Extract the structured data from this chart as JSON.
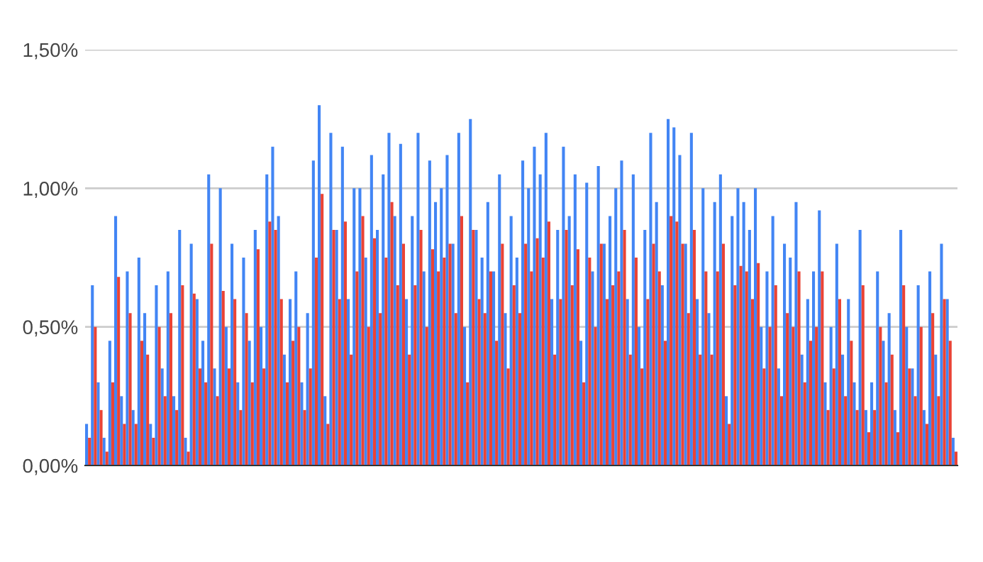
{
  "chart_data": {
    "type": "bar",
    "categories": [
      null,
      null,
      null,
      null,
      null,
      null,
      null,
      null,
      null,
      null,
      null,
      null,
      null,
      null,
      null,
      null,
      null,
      null,
      null,
      null,
      null,
      null,
      null,
      null,
      null,
      null,
      null,
      null,
      null,
      null,
      null,
      null,
      null,
      null,
      null,
      null,
      null,
      null,
      null,
      null,
      null,
      null,
      null,
      null,
      null,
      null,
      null,
      null,
      null,
      null,
      null,
      null,
      null,
      null,
      null,
      null,
      null,
      null,
      null,
      null,
      null,
      null,
      null,
      null,
      null,
      null,
      null,
      null,
      null,
      null,
      null,
      null,
      null,
      null,
      null,
      null,
      null,
      null,
      null,
      null,
      null,
      null,
      null,
      null,
      null,
      null,
      null,
      null,
      null,
      null,
      null,
      null,
      null,
      null,
      null,
      null,
      null,
      null,
      null,
      null,
      null,
      null,
      null,
      null,
      null,
      null,
      null,
      null,
      null,
      null,
      null,
      null,
      null,
      null,
      null,
      null,
      null,
      null,
      null,
      null,
      null,
      null,
      null,
      null,
      null,
      null,
      null,
      null,
      null,
      null,
      null,
      null,
      null,
      null,
      null,
      null,
      null,
      null,
      null,
      null,
      null,
      null,
      null,
      null,
      null,
      null,
      null,
      null,
      null,
      null
    ],
    "series": [
      {
        "color": "#4285f4",
        "values": [
          0.15,
          0.65,
          0.3,
          0.1,
          0.45,
          0.9,
          0.25,
          0.7,
          0.2,
          0.75,
          0.55,
          0.15,
          0.65,
          0.35,
          0.7,
          0.25,
          0.85,
          0.1,
          0.8,
          0.6,
          0.45,
          1.05,
          0.35,
          1.0,
          0.5,
          0.8,
          0.3,
          0.75,
          0.45,
          0.85,
          0.5,
          1.05,
          1.15,
          0.9,
          0.4,
          0.6,
          0.7,
          0.3,
          0.55,
          1.1,
          1.3,
          0.25,
          1.2,
          0.85,
          1.15,
          0.6,
          1.0,
          1.0,
          0.75,
          1.12,
          0.85,
          1.05,
          1.2,
          0.9,
          1.16,
          0.6,
          0.9,
          1.2,
          0.7,
          1.1,
          0.95,
          1.0,
          1.12,
          0.8,
          1.2,
          0.5,
          1.25,
          0.85,
          0.75,
          0.95,
          0.7,
          1.05,
          0.55,
          0.9,
          0.75,
          1.1,
          1.0,
          1.15,
          1.05,
          1.2,
          0.6,
          0.85,
          1.15,
          0.9,
          1.05,
          0.45,
          1.02,
          0.7,
          1.08,
          0.8,
          0.9,
          1.0,
          1.1,
          0.6,
          1.05,
          0.5,
          0.85,
          1.2,
          0.95,
          0.65,
          1.25,
          1.22,
          1.12,
          0.8,
          1.2,
          0.6,
          1.0,
          0.55,
          0.95,
          1.05,
          0.25,
          0.9,
          1.0,
          0.95,
          0.85,
          1.0,
          0.5,
          0.7,
          0.9,
          0.35,
          0.8,
          0.75,
          0.95,
          0.4,
          0.6,
          0.7,
          0.92,
          0.3,
          0.5,
          0.8,
          0.4,
          0.6,
          0.3,
          0.85,
          0.2,
          0.3,
          0.7,
          0.45,
          0.55,
          0.2,
          0.85,
          0.5,
          0.35,
          0.65,
          0.2,
          0.7,
          0.4,
          0.8,
          0.6,
          0.1
        ]
      },
      {
        "color": "#ea4335",
        "values": [
          0.1,
          0.5,
          0.2,
          0.05,
          0.3,
          0.68,
          0.15,
          0.55,
          0.15,
          0.45,
          0.4,
          0.1,
          0.5,
          0.25,
          0.55,
          0.2,
          0.65,
          0.05,
          0.62,
          0.35,
          0.3,
          0.8,
          0.25,
          0.63,
          0.35,
          0.6,
          0.2,
          0.55,
          0.3,
          0.78,
          0.35,
          0.88,
          0.85,
          0.6,
          0.3,
          0.45,
          0.5,
          0.2,
          0.35,
          0.75,
          0.98,
          0.15,
          0.85,
          0.6,
          0.88,
          0.4,
          0.7,
          0.9,
          0.5,
          0.82,
          0.55,
          0.75,
          0.95,
          0.65,
          0.8,
          0.4,
          0.65,
          0.85,
          0.5,
          0.78,
          0.7,
          0.75,
          0.8,
          0.55,
          0.9,
          0.3,
          0.85,
          0.6,
          0.55,
          0.7,
          0.45,
          0.8,
          0.35,
          0.65,
          0.55,
          0.8,
          0.7,
          0.82,
          0.75,
          0.88,
          0.4,
          0.6,
          0.85,
          0.65,
          0.78,
          0.3,
          0.75,
          0.5,
          0.8,
          0.6,
          0.65,
          0.7,
          0.85,
          0.4,
          0.75,
          0.35,
          0.6,
          0.8,
          0.7,
          0.45,
          0.9,
          0.88,
          0.8,
          0.55,
          0.85,
          0.4,
          0.7,
          0.4,
          0.7,
          0.8,
          0.15,
          0.65,
          0.72,
          0.7,
          0.6,
          0.73,
          0.35,
          0.5,
          0.65,
          0.25,
          0.55,
          0.5,
          0.7,
          0.3,
          0.45,
          0.5,
          0.7,
          0.2,
          0.35,
          0.6,
          0.25,
          0.45,
          0.2,
          0.65,
          0.12,
          0.2,
          0.5,
          0.3,
          0.4,
          0.12,
          0.65,
          0.35,
          0.25,
          0.5,
          0.15,
          0.55,
          0.25,
          0.6,
          0.45,
          0.05
        ]
      }
    ],
    "ylim": [
      0,
      1.5
    ],
    "yticks": [
      {
        "value": 0,
        "label": "0,00%"
      },
      {
        "value": 0.5,
        "label": "0,50%"
      },
      {
        "value": 1.0,
        "label": "1,00%"
      },
      {
        "value": 1.5,
        "label": "1,50%"
      }
    ],
    "grid": "y",
    "tick_labels": "y"
  }
}
